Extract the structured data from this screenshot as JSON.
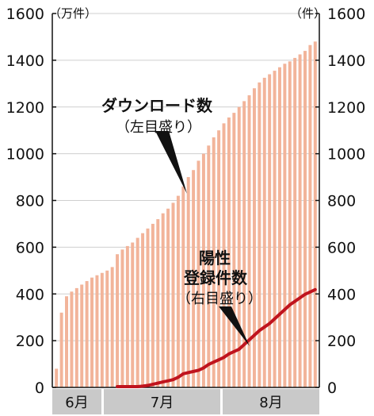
{
  "chart_data": {
    "type": "bar+line",
    "left_axis": {
      "unit": "（万件）",
      "ticks": [
        "0",
        "200",
        "400",
        "600",
        "800",
        "1000",
        "1200",
        "1400",
        "1600"
      ],
      "range": [
        0,
        1600
      ]
    },
    "right_axis": {
      "unit": "（件）",
      "ticks": [
        "0",
        "200",
        "400",
        "600",
        "800",
        "1000",
        "1200",
        "1400",
        "1600"
      ],
      "range": [
        0,
        1600
      ]
    },
    "months": [
      "6月",
      "7月",
      "8月"
    ],
    "downloads": {
      "label_line1": "ダウンロード数",
      "label_line2": "（左目盛り）",
      "color": "#f2b49a",
      "values": [
        80,
        320,
        390,
        410,
        425,
        440,
        455,
        470,
        480,
        490,
        500,
        515,
        570,
        590,
        605,
        620,
        640,
        660,
        680,
        700,
        720,
        745,
        765,
        790,
        820,
        860,
        900,
        930,
        970,
        1000,
        1035,
        1070,
        1100,
        1130,
        1155,
        1175,
        1200,
        1225,
        1250,
        1280,
        1305,
        1325,
        1340,
        1355,
        1370,
        1385,
        1395,
        1410,
        1425,
        1440,
        1465,
        1480
      ]
    },
    "positives": {
      "label_line1": "陽性",
      "label_line2": "登録件数",
      "label_line3": "（右目盛り）",
      "color": "#c0141e",
      "values": [
        null,
        null,
        null,
        null,
        null,
        null,
        null,
        null,
        null,
        null,
        null,
        null,
        0,
        0,
        0,
        0,
        0,
        2,
        5,
        10,
        15,
        20,
        25,
        30,
        40,
        55,
        60,
        65,
        70,
        80,
        95,
        105,
        115,
        125,
        140,
        150,
        160,
        180,
        200,
        220,
        240,
        255,
        270,
        290,
        310,
        330,
        350,
        365,
        380,
        395,
        405,
        415
      ]
    }
  }
}
